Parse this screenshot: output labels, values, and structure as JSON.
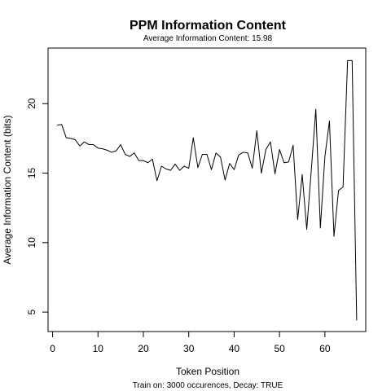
{
  "chart_data": {
    "type": "line",
    "title": "PPM Information Content",
    "subtitle": "Average Information Content: 15.98",
    "xlabel": "Token Position",
    "ylabel": "Average Information Content (bits)",
    "caption": "Train on: 3000 occurences, Decay: TRUE",
    "xlim": [
      -1,
      69
    ],
    "ylim": [
      3.6,
      24.0
    ],
    "xticks": [
      0,
      10,
      20,
      30,
      40,
      50,
      60
    ],
    "yticks": [
      5,
      10,
      15,
      20
    ],
    "grid": false,
    "legend": "none",
    "line_color": "#000000",
    "series": [
      {
        "x": [
          1,
          2,
          3,
          4,
          5,
          6,
          7,
          8,
          9,
          10,
          11,
          12,
          13,
          14,
          15,
          16,
          17,
          18,
          19,
          20,
          21,
          22,
          23,
          24,
          25,
          26,
          27,
          28,
          29,
          30,
          31,
          32,
          33,
          34,
          35,
          36,
          37,
          38,
          39,
          40,
          41,
          42,
          43,
          44,
          45,
          46,
          47,
          48,
          49,
          50,
          51,
          52,
          53,
          54,
          55,
          56,
          57,
          58,
          59,
          60,
          61,
          62,
          63,
          64,
          65,
          66,
          67
        ],
        "values": [
          18.45,
          18.5,
          17.55,
          17.5,
          17.4,
          16.95,
          17.25,
          17.05,
          17.05,
          16.8,
          16.75,
          16.65,
          16.5,
          16.6,
          17.05,
          16.35,
          16.2,
          16.45,
          15.9,
          15.9,
          15.75,
          16.0,
          14.45,
          15.5,
          15.3,
          15.2,
          15.65,
          15.2,
          15.5,
          15.35,
          17.55,
          15.4,
          16.35,
          16.35,
          15.25,
          16.45,
          16.15,
          14.5,
          15.7,
          15.25,
          16.3,
          16.5,
          16.45,
          15.35,
          18.05,
          15.0,
          16.7,
          17.25,
          14.95,
          16.7,
          15.75,
          15.8,
          17.0,
          11.65,
          14.9,
          10.95,
          15.2,
          19.6,
          11.05,
          16.2,
          18.75,
          10.45,
          13.75,
          14.0,
          23.1,
          23.1,
          4.4
        ]
      }
    ]
  }
}
